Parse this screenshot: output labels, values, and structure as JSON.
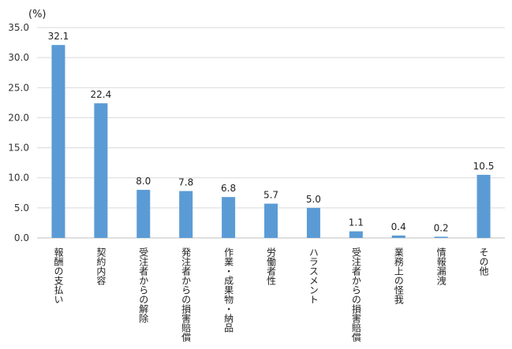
{
  "chart_data": {
    "type": "bar",
    "unit_label": "(%)",
    "categories": [
      "報酬の支払い",
      "契約内容",
      "受注者からの解除",
      "発注者からの損害賠償",
      "作業・成果物・納品",
      "労働者性",
      "ハラスメント",
      "受注者からの損害賠償",
      "業務上の怪我",
      "情報漏洩",
      "その他"
    ],
    "values": [
      32.1,
      22.4,
      8.0,
      7.8,
      6.8,
      5.7,
      5.0,
      1.1,
      0.4,
      0.2,
      10.5
    ],
    "value_labels": [
      "32.1",
      "22.4",
      "8.0",
      "7.8",
      "6.8",
      "5.7",
      "5.0",
      "1.1",
      "0.4",
      "0.2",
      "10.5"
    ],
    "ylim": [
      0,
      35
    ],
    "yticks": [
      0,
      5,
      10,
      15,
      20,
      25,
      30,
      35
    ],
    "ytick_labels": [
      "0.0",
      "5.0",
      "10.0",
      "15.0",
      "20.0",
      "25.0",
      "30.0",
      "35.0"
    ],
    "grid": true,
    "legend": "none",
    "colors": {
      "bar": "#5b9bd5",
      "grid": "#d9d9d9",
      "axis": "#bfbfbf"
    }
  }
}
